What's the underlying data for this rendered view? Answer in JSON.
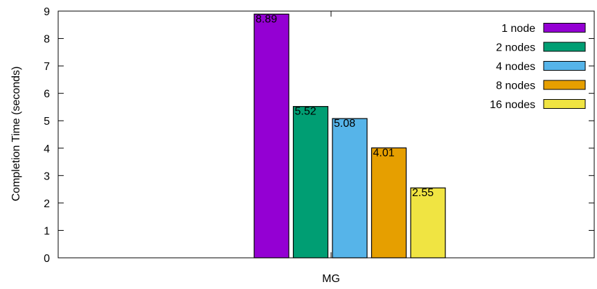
{
  "chart_data": {
    "type": "bar",
    "categories": [
      "MG"
    ],
    "series": [
      {
        "name": "1 node",
        "values": [
          8.89
        ],
        "color": "#9400d3"
      },
      {
        "name": "2 nodes",
        "values": [
          5.52
        ],
        "color": "#009e73"
      },
      {
        "name": "4 nodes",
        "values": [
          5.08
        ],
        "color": "#56b4e9"
      },
      {
        "name": "8 nodes",
        "values": [
          4.01
        ],
        "color": "#e69f00"
      },
      {
        "name": "16 nodes",
        "values": [
          2.55
        ],
        "color": "#f0e442"
      }
    ],
    "data_labels": [
      "8.89",
      "5.52",
      "5.08",
      "4.01",
      "2.55"
    ],
    "ylabel": "Completion Time (seconds)",
    "xlabel": "",
    "ylim": [
      0,
      9
    ],
    "yticks": [
      0,
      1,
      2,
      3,
      4,
      5,
      6,
      7,
      8,
      9
    ],
    "grid": false,
    "legend_position": "top-right"
  }
}
